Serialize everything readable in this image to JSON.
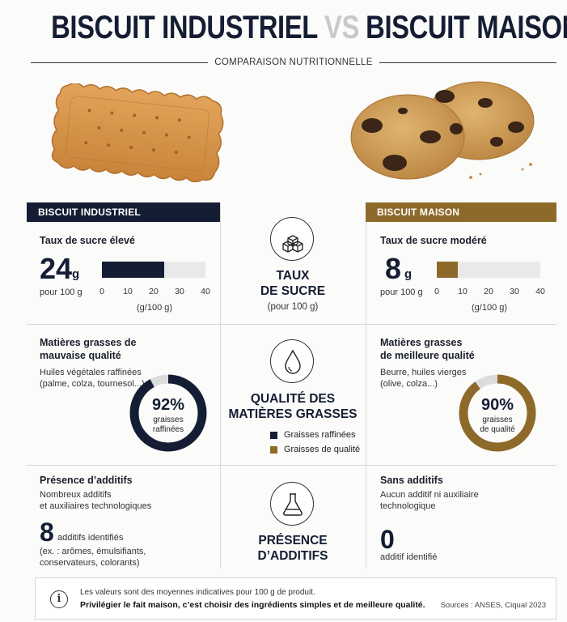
{
  "header": {
    "title_left": "BISCUIT INDUSTRIEL",
    "title_vs": "VS",
    "title_right": "BISCUIT MAISON",
    "subtitle": "COMPARAISON NUTRITIONNELLE"
  },
  "colors": {
    "industriel": "#141d33",
    "maison": "#8e6a2a",
    "track": "#e9e9ea",
    "donut_track": "#dcdcdc"
  },
  "columns": {
    "industriel": "BISCUIT INDUSTRIEL",
    "maison": "BISCUIT MAISON"
  },
  "sugar": {
    "center_title_1": "TAUX",
    "center_title_2": "DE SUCRE",
    "center_sub": "(pour 100 g)",
    "center_icon": "sugar-cubes-icon",
    "industriel": {
      "label": "Taux de sucre élevé",
      "value": "24",
      "value_num": 24,
      "unit": "g",
      "per": "pour 100 g"
    },
    "maison": {
      "label": "Taux de sucre modéré",
      "value": "8",
      "value_num": 8,
      "unit": "g",
      "per": "pour 100 g"
    },
    "axis_ticks": [
      "0",
      "10",
      "20",
      "30",
      "40"
    ],
    "axis_max": 40,
    "axis_unit": "(g/100 g)"
  },
  "fats": {
    "center_title_1": "QUALITÉ DES",
    "center_title_2": "MATIÈRES GRASSES",
    "center_icon": "drop-icon",
    "legend_refined": "Graisses raffinées",
    "legend_quality": "Graisses de qualité",
    "industriel": {
      "label_1": "Matières grasses de",
      "label_2": "mauvaise qualité",
      "desc_1": "Huiles végétales raffinées",
      "desc_2": "(palme, colza, tournesol...)",
      "pct": "92%",
      "pct_num": 92,
      "donut_1": "graisses",
      "donut_2": "raffinées"
    },
    "maison": {
      "label_1": "Matières grasses",
      "label_2": "de meilleure qualité",
      "desc_1": "Beurre, huiles vierges",
      "desc_2": "(olive, colza...)",
      "pct": "90%",
      "pct_num": 90,
      "donut_1": "graisses",
      "donut_2": "de qualité"
    }
  },
  "additives": {
    "center_title_1": "PRÉSENCE",
    "center_title_2": "D’ADDITIFS",
    "center_icon": "flask-icon",
    "industriel": {
      "label": "Présence d’additifs",
      "desc_1": "Nombreux additifs",
      "desc_2": "et auxiliaires technologiques",
      "count": "8",
      "count_label": "additifs identifiés",
      "ex_1": "(ex. : arômes, émulsifiants,",
      "ex_2": "conservateurs, colorants)"
    },
    "maison": {
      "label": "Sans additifs",
      "desc_1": "Aucun additif ni auxiliaire",
      "desc_2": "technologique",
      "count": "0",
      "count_label": "additif identifié"
    }
  },
  "footer": {
    "icon": "info-icon",
    "line1": "Les valeurs sont des moyennes indicatives pour 100 g de produit.",
    "line2": "Privilégier le fait maison, c’est choisir des ingrédients simples et de meilleure qualité.",
    "sources": "Sources : ANSES, Ciqual 2023"
  }
}
